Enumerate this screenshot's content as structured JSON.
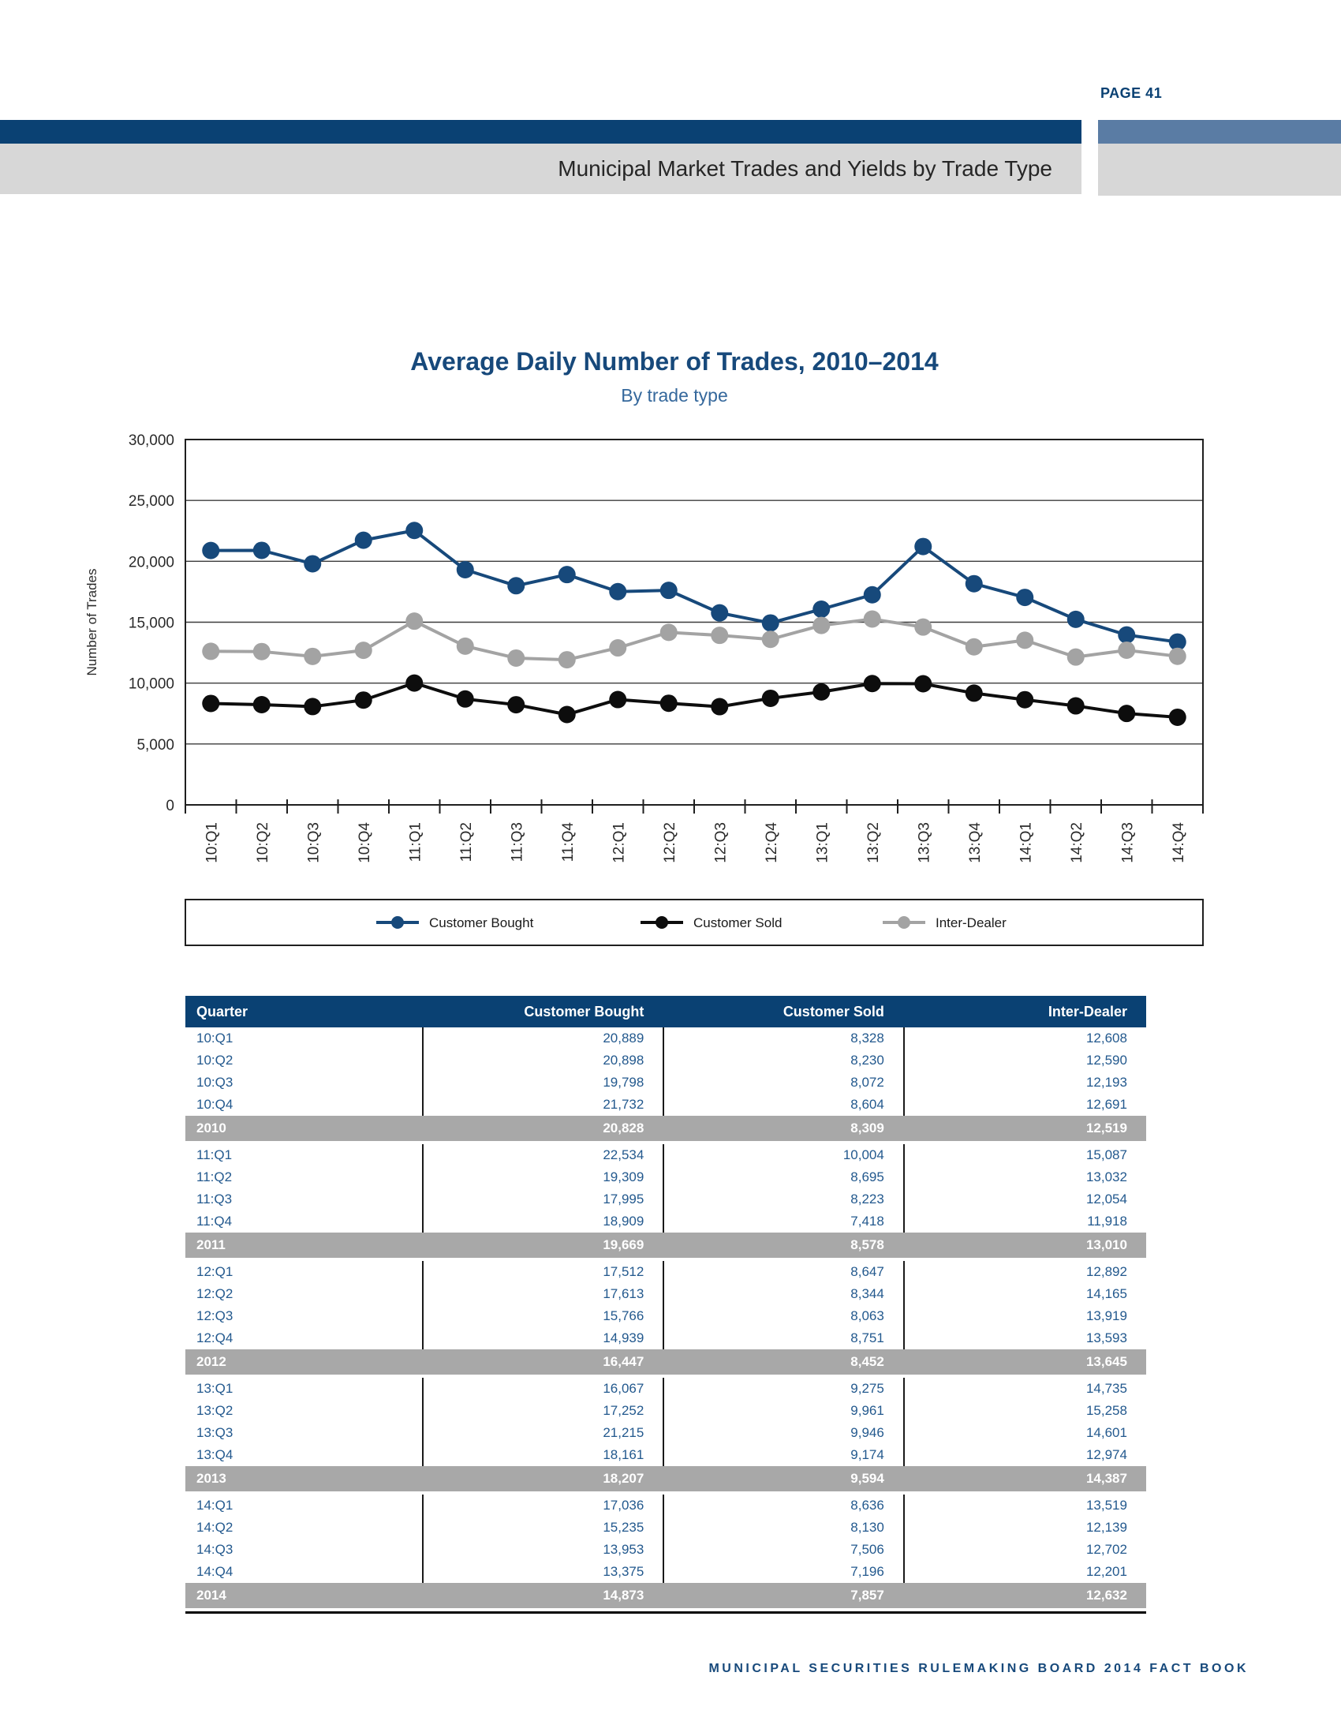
{
  "header": {
    "page_label": "PAGE 41",
    "band_title": "Municipal Market Trades and Yields by Trade Type"
  },
  "chart": {
    "title": "Average Daily Number of Trades, 2010–2014",
    "subtitle": "By trade type",
    "ylabel": "Number of Trades"
  },
  "chart_data": {
    "type": "line",
    "title": "Average Daily Number of Trades, 2010–2014",
    "subtitle": "By trade type",
    "xlabel": "",
    "ylabel": "Number of Trades",
    "ylim": [
      0,
      30000
    ],
    "ytick_interval": 5000,
    "ytick_labels": [
      "0",
      "5,000",
      "10,000",
      "15,000",
      "20,000",
      "25,000",
      "30,000"
    ],
    "grid": "horizontal",
    "legend_position": "bottom",
    "categories": [
      "10:Q1",
      "10:Q2",
      "10:Q3",
      "10:Q4",
      "11:Q1",
      "11:Q2",
      "11:Q3",
      "11:Q4",
      "12:Q1",
      "12:Q2",
      "12:Q3",
      "12:Q4",
      "13:Q1",
      "13:Q2",
      "13:Q3",
      "13:Q4",
      "14:Q1",
      "14:Q2",
      "14:Q3",
      "14:Q4"
    ],
    "series": [
      {
        "name": "Customer Bought",
        "color": "#17497b",
        "values": [
          20889,
          20898,
          19798,
          21732,
          22534,
          19309,
          17995,
          18909,
          17512,
          17613,
          15766,
          14939,
          16067,
          17252,
          21215,
          18161,
          17036,
          15235,
          13953,
          13375
        ]
      },
      {
        "name": "Customer Sold",
        "color": "#0d0d0d",
        "values": [
          8328,
          8230,
          8072,
          8604,
          10004,
          8695,
          8223,
          7418,
          8647,
          8344,
          8063,
          8751,
          9275,
          9961,
          9946,
          9174,
          8636,
          8130,
          7506,
          7196
        ]
      },
      {
        "name": "Inter-Dealer",
        "color": "#a3a3a3",
        "values": [
          12608,
          12590,
          12193,
          12691,
          15087,
          13032,
          12054,
          11918,
          12892,
          14165,
          13919,
          13593,
          14735,
          15258,
          14601,
          12974,
          13519,
          12139,
          12702,
          12201
        ]
      }
    ]
  },
  "table": {
    "headers": [
      "Quarter",
      "Customer Bought",
      "Customer Sold",
      "Inter-Dealer"
    ],
    "rows": [
      {
        "type": "quarter",
        "cells": [
          "10:Q1",
          "20,889",
          "8,328",
          "12,608"
        ]
      },
      {
        "type": "quarter",
        "cells": [
          "10:Q2",
          "20,898",
          "8,230",
          "12,590"
        ]
      },
      {
        "type": "quarter",
        "cells": [
          "10:Q3",
          "19,798",
          "8,072",
          "12,193"
        ]
      },
      {
        "type": "quarter",
        "cells": [
          "10:Q4",
          "21,732",
          "8,604",
          "12,691"
        ]
      },
      {
        "type": "year",
        "cells": [
          "2010",
          "20,828",
          "8,309",
          "12,519"
        ]
      },
      {
        "type": "quarter",
        "cells": [
          "11:Q1",
          "22,534",
          "10,004",
          "15,087"
        ]
      },
      {
        "type": "quarter",
        "cells": [
          "11:Q2",
          "19,309",
          "8,695",
          "13,032"
        ]
      },
      {
        "type": "quarter",
        "cells": [
          "11:Q3",
          "17,995",
          "8,223",
          "12,054"
        ]
      },
      {
        "type": "quarter",
        "cells": [
          "11:Q4",
          "18,909",
          "7,418",
          "11,918"
        ]
      },
      {
        "type": "year",
        "cells": [
          "2011",
          "19,669",
          "8,578",
          "13,010"
        ]
      },
      {
        "type": "quarter",
        "cells": [
          "12:Q1",
          "17,512",
          "8,647",
          "12,892"
        ]
      },
      {
        "type": "quarter",
        "cells": [
          "12:Q2",
          "17,613",
          "8,344",
          "14,165"
        ]
      },
      {
        "type": "quarter",
        "cells": [
          "12:Q3",
          "15,766",
          "8,063",
          "13,919"
        ]
      },
      {
        "type": "quarter",
        "cells": [
          "12:Q4",
          "14,939",
          "8,751",
          "13,593"
        ]
      },
      {
        "type": "year",
        "cells": [
          "2012",
          "16,447",
          "8,452",
          "13,645"
        ]
      },
      {
        "type": "quarter",
        "cells": [
          "13:Q1",
          "16,067",
          "9,275",
          "14,735"
        ]
      },
      {
        "type": "quarter",
        "cells": [
          "13:Q2",
          "17,252",
          "9,961",
          "15,258"
        ]
      },
      {
        "type": "quarter",
        "cells": [
          "13:Q3",
          "21,215",
          "9,946",
          "14,601"
        ]
      },
      {
        "type": "quarter",
        "cells": [
          "13:Q4",
          "18,161",
          "9,174",
          "12,974"
        ]
      },
      {
        "type": "year",
        "cells": [
          "2013",
          "18,207",
          "9,594",
          "14,387"
        ]
      },
      {
        "type": "quarter",
        "cells": [
          "14:Q1",
          "17,036",
          "8,636",
          "13,519"
        ]
      },
      {
        "type": "quarter",
        "cells": [
          "14:Q2",
          "15,235",
          "8,130",
          "12,139"
        ]
      },
      {
        "type": "quarter",
        "cells": [
          "14:Q3",
          "13,953",
          "7,506",
          "12,702"
        ]
      },
      {
        "type": "quarter",
        "cells": [
          "14:Q4",
          "13,375",
          "7,196",
          "12,201"
        ]
      },
      {
        "type": "year",
        "cells": [
          "2014",
          "14,873",
          "7,857",
          "12,632"
        ]
      }
    ]
  },
  "footer": {
    "text": "MUNICIPAL SECURITIES RULEMAKING BOARD 2014 FACT BOOK"
  },
  "colors": {
    "navy": "#0a4173",
    "slate_blue": "#5a7ca4",
    "band_gray": "#d7d7d7",
    "table_header_navy": "#0d4377",
    "table_text_blue": "#23598e",
    "summary_row_gray": "#a8a8a8",
    "series_customer_bought": "#17497b",
    "series_customer_sold": "#0d0d0d",
    "series_inter_dealer": "#a3a3a3"
  }
}
